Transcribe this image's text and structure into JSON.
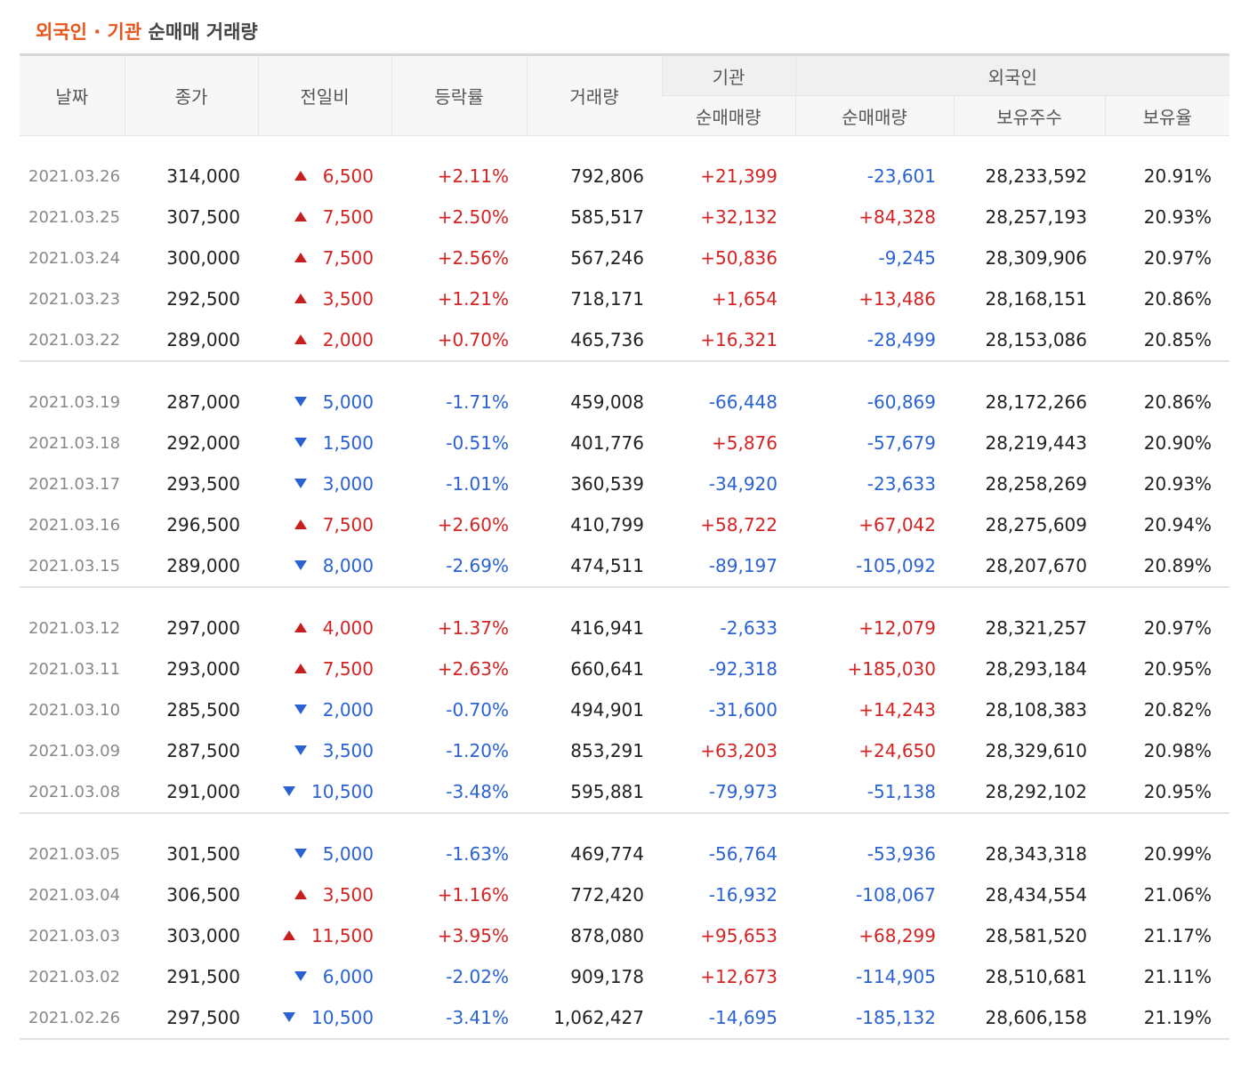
{
  "title": {
    "highlight": "외국인 · 기관",
    "rest": " 순매매 거래량"
  },
  "headers": {
    "date": "날짜",
    "close": "종가",
    "change": "전일비",
    "rate": "등락률",
    "volume": "거래량",
    "inst_group": "기관",
    "foreign_group": "외국인",
    "inst_net": "순매매량",
    "foreign_net": "순매매량",
    "foreign_shares": "보유주수",
    "foreign_ratio": "보유율"
  },
  "colors": {
    "accent": "#e8561d",
    "up": "#d42323",
    "down": "#2a62d4"
  },
  "rows": [
    {
      "date": "2021.03.26",
      "close": "314,000",
      "dir": "up",
      "change": "6,500",
      "rate": "+2.11%",
      "volume": "792,806",
      "inst": "+21,399",
      "foreign": "-23,601",
      "shares": "28,233,592",
      "ratio": "20.91%"
    },
    {
      "date": "2021.03.25",
      "close": "307,500",
      "dir": "up",
      "change": "7,500",
      "rate": "+2.50%",
      "volume": "585,517",
      "inst": "+32,132",
      "foreign": "+84,328",
      "shares": "28,257,193",
      "ratio": "20.93%"
    },
    {
      "date": "2021.03.24",
      "close": "300,000",
      "dir": "up",
      "change": "7,500",
      "rate": "+2.56%",
      "volume": "567,246",
      "inst": "+50,836",
      "foreign": "-9,245",
      "shares": "28,309,906",
      "ratio": "20.97%"
    },
    {
      "date": "2021.03.23",
      "close": "292,500",
      "dir": "up",
      "change": "3,500",
      "rate": "+1.21%",
      "volume": "718,171",
      "inst": "+1,654",
      "foreign": "+13,486",
      "shares": "28,168,151",
      "ratio": "20.86%"
    },
    {
      "date": "2021.03.22",
      "close": "289,000",
      "dir": "up",
      "change": "2,000",
      "rate": "+0.70%",
      "volume": "465,736",
      "inst": "+16,321",
      "foreign": "-28,499",
      "shares": "28,153,086",
      "ratio": "20.85%"
    },
    {
      "date": "2021.03.19",
      "close": "287,000",
      "dir": "down",
      "change": "5,000",
      "rate": "-1.71%",
      "volume": "459,008",
      "inst": "-66,448",
      "foreign": "-60,869",
      "shares": "28,172,266",
      "ratio": "20.86%"
    },
    {
      "date": "2021.03.18",
      "close": "292,000",
      "dir": "down",
      "change": "1,500",
      "rate": "-0.51%",
      "volume": "401,776",
      "inst": "+5,876",
      "foreign": "-57,679",
      "shares": "28,219,443",
      "ratio": "20.90%"
    },
    {
      "date": "2021.03.17",
      "close": "293,500",
      "dir": "down",
      "change": "3,000",
      "rate": "-1.01%",
      "volume": "360,539",
      "inst": "-34,920",
      "foreign": "-23,633",
      "shares": "28,258,269",
      "ratio": "20.93%"
    },
    {
      "date": "2021.03.16",
      "close": "296,500",
      "dir": "up",
      "change": "7,500",
      "rate": "+2.60%",
      "volume": "410,799",
      "inst": "+58,722",
      "foreign": "+67,042",
      "shares": "28,275,609",
      "ratio": "20.94%"
    },
    {
      "date": "2021.03.15",
      "close": "289,000",
      "dir": "down",
      "change": "8,000",
      "rate": "-2.69%",
      "volume": "474,511",
      "inst": "-89,197",
      "foreign": "-105,092",
      "shares": "28,207,670",
      "ratio": "20.89%"
    },
    {
      "date": "2021.03.12",
      "close": "297,000",
      "dir": "up",
      "change": "4,000",
      "rate": "+1.37%",
      "volume": "416,941",
      "inst": "-2,633",
      "foreign": "+12,079",
      "shares": "28,321,257",
      "ratio": "20.97%"
    },
    {
      "date": "2021.03.11",
      "close": "293,000",
      "dir": "up",
      "change": "7,500",
      "rate": "+2.63%",
      "volume": "660,641",
      "inst": "-92,318",
      "foreign": "+185,030",
      "shares": "28,293,184",
      "ratio": "20.95%"
    },
    {
      "date": "2021.03.10",
      "close": "285,500",
      "dir": "down",
      "change": "2,000",
      "rate": "-0.70%",
      "volume": "494,901",
      "inst": "-31,600",
      "foreign": "+14,243",
      "shares": "28,108,383",
      "ratio": "20.82%"
    },
    {
      "date": "2021.03.09",
      "close": "287,500",
      "dir": "down",
      "change": "3,500",
      "rate": "-1.20%",
      "volume": "853,291",
      "inst": "+63,203",
      "foreign": "+24,650",
      "shares": "28,329,610",
      "ratio": "20.98%"
    },
    {
      "date": "2021.03.08",
      "close": "291,000",
      "dir": "down",
      "change": "10,500",
      "rate": "-3.48%",
      "volume": "595,881",
      "inst": "-79,973",
      "foreign": "-51,138",
      "shares": "28,292,102",
      "ratio": "20.95%"
    },
    {
      "date": "2021.03.05",
      "close": "301,500",
      "dir": "down",
      "change": "5,000",
      "rate": "-1.63%",
      "volume": "469,774",
      "inst": "-56,764",
      "foreign": "-53,936",
      "shares": "28,343,318",
      "ratio": "20.99%"
    },
    {
      "date": "2021.03.04",
      "close": "306,500",
      "dir": "up",
      "change": "3,500",
      "rate": "+1.16%",
      "volume": "772,420",
      "inst": "-16,932",
      "foreign": "-108,067",
      "shares": "28,434,554",
      "ratio": "21.06%"
    },
    {
      "date": "2021.03.03",
      "close": "303,000",
      "dir": "up",
      "change": "11,500",
      "rate": "+3.95%",
      "volume": "878,080",
      "inst": "+95,653",
      "foreign": "+68,299",
      "shares": "28,581,520",
      "ratio": "21.17%"
    },
    {
      "date": "2021.03.02",
      "close": "291,500",
      "dir": "down",
      "change": "6,000",
      "rate": "-2.02%",
      "volume": "909,178",
      "inst": "+12,673",
      "foreign": "-114,905",
      "shares": "28,510,681",
      "ratio": "21.11%"
    },
    {
      "date": "2021.02.26",
      "close": "297,500",
      "dir": "down",
      "change": "10,500",
      "rate": "-3.41%",
      "volume": "1,062,427",
      "inst": "-14,695",
      "foreign": "-185,132",
      "shares": "28,606,158",
      "ratio": "21.19%"
    }
  ]
}
